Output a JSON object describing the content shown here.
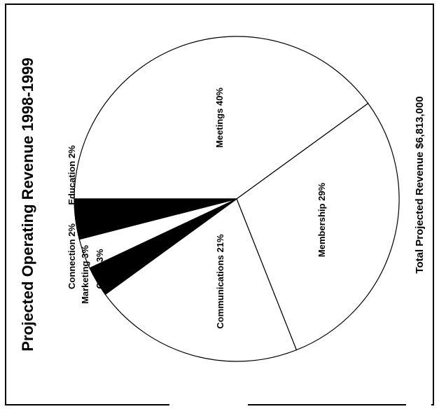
{
  "chart_data": {
    "type": "pie",
    "title": "Projected Operating Revenue 1998-1999",
    "footnote": "Total Projected Revenue $6,813,000",
    "slices": [
      {
        "label": "Meetings 40%",
        "value": 40,
        "fill": "#ffffff"
      },
      {
        "label": "Membership 29%",
        "value": 29,
        "fill": "#ffffff"
      },
      {
        "label": "Communications 21%",
        "value": 21,
        "fill": "#ffffff"
      },
      {
        "label": "Other 3%",
        "value": 3,
        "fill": "#000000"
      },
      {
        "label": "Marketing 3%",
        "value": 3,
        "fill": "#ffffff"
      },
      {
        "label": "Connection 2%",
        "value": 2,
        "fill": "#000000"
      },
      {
        "label": "Education 2%",
        "value": 2,
        "fill": "#000000"
      }
    ]
  }
}
